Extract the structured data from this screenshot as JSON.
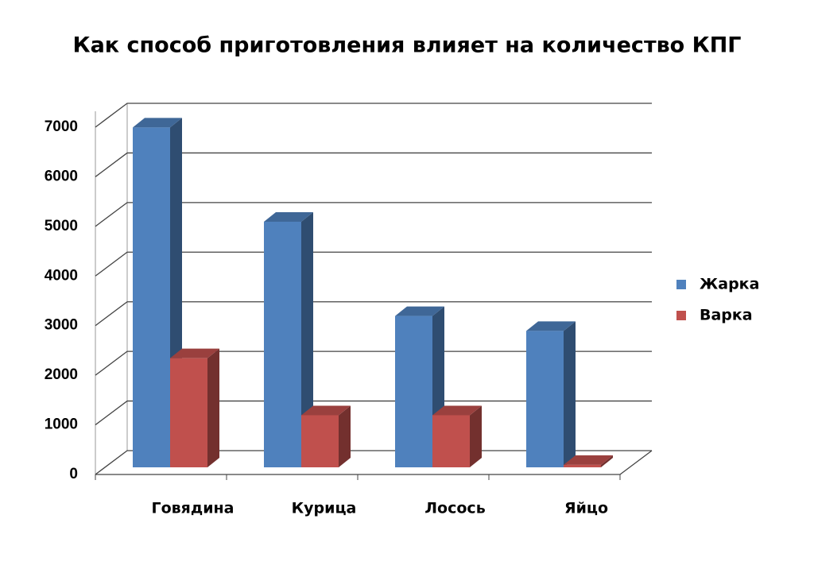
{
  "chart_data": {
    "type": "bar3d",
    "title": "Как способ приготовления влияет на количество КПГ",
    "categories": [
      "Говядина",
      "Курица",
      "Лосось",
      "Яйцо"
    ],
    "series": [
      {
        "name": "Жарка",
        "color": "#4f81bd",
        "values": [
          6850,
          4950,
          3050,
          2750
        ]
      },
      {
        "name": "Варка",
        "color": "#c0504d",
        "values": [
          2200,
          1050,
          1050,
          50
        ]
      }
    ],
    "ylim": [
      0,
      7000
    ],
    "yticks": [
      0,
      1000,
      2000,
      3000,
      4000,
      5000,
      6000,
      7000
    ],
    "grid": true,
    "legend": "right"
  }
}
